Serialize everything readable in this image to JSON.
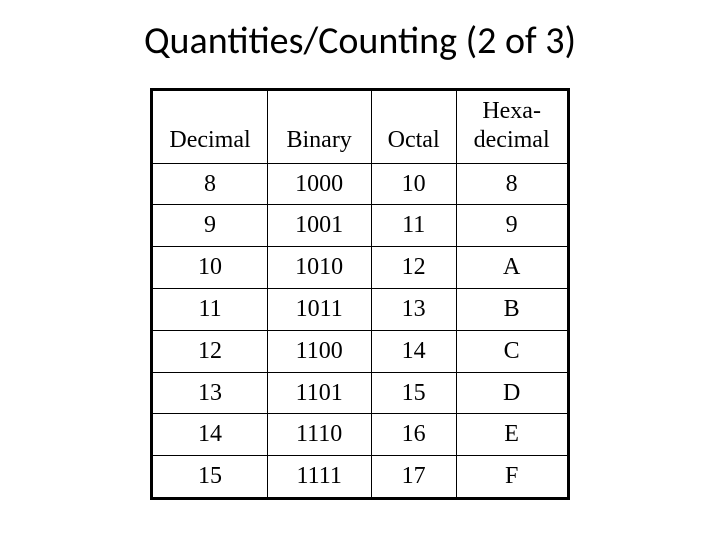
{
  "title": "Quantities/Counting (2 of 3)",
  "table": {
    "columns": [
      {
        "label": "Decimal"
      },
      {
        "label": "Binary"
      },
      {
        "label": "Octal"
      },
      {
        "label_line1": "Hexa-",
        "label_line2": "decimal"
      }
    ],
    "rows": [
      [
        "8",
        "1000",
        "10",
        "8"
      ],
      [
        "9",
        "1001",
        "11",
        "9"
      ],
      [
        "10",
        "1010",
        "12",
        "A"
      ],
      [
        "11",
        "1011",
        "13",
        "B"
      ],
      [
        "12",
        "1100",
        "14",
        "C"
      ],
      [
        "13",
        "1101",
        "15",
        "D"
      ],
      [
        "14",
        "1110",
        "16",
        "E"
      ],
      [
        "15",
        "1111",
        "17",
        "F"
      ]
    ],
    "border_color": "#000000",
    "header_fontsize": 24,
    "cell_fontsize": 24,
    "font_family": "Times New Roman"
  },
  "title_fontsize": 38,
  "background_color": "#ffffff"
}
